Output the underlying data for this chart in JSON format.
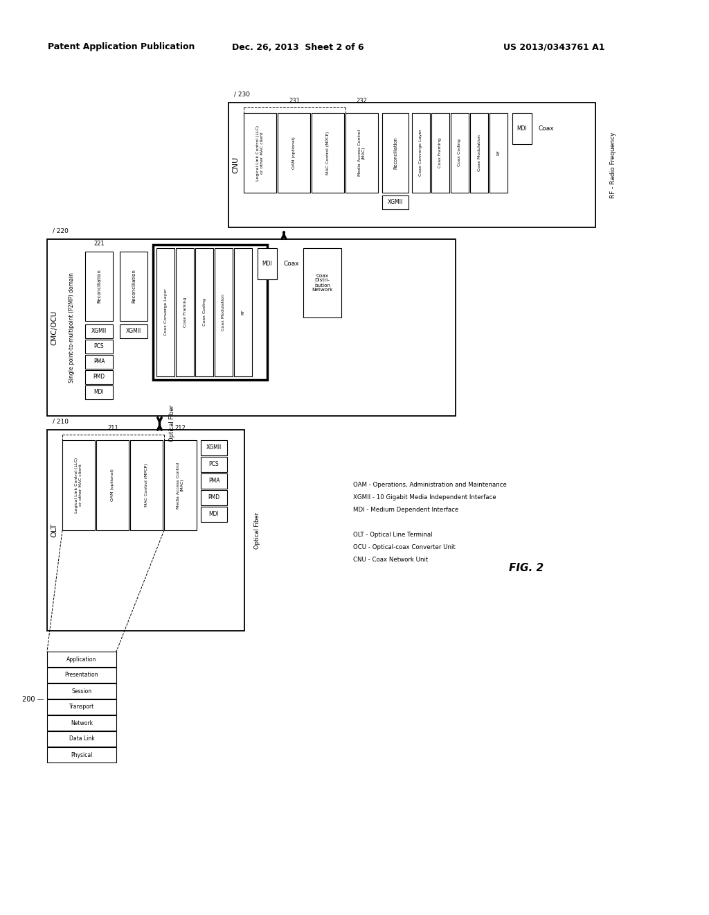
{
  "header_left": "Patent Application Publication",
  "header_mid": "Dec. 26, 2013  Sheet 2 of 6",
  "header_right": "US 2013/0343761 A1",
  "fig_label": "FIG. 2",
  "bg_color": "#ffffff",
  "osi_layers": [
    "Application",
    "Presentation",
    "Session",
    "Transport",
    "Network",
    "Data Link",
    "Physical"
  ],
  "legend_lines": [
    "OAM - Operations, Administration and Maintenance",
    "XGMII - 10 Gigabit Media Independent Interface",
    "MDI - Medium Dependent Interface",
    "",
    "OLT - Optical Line Terminal",
    "OCU - Optical-coax Converter Unit",
    "CNU - Coax Network Unit"
  ]
}
